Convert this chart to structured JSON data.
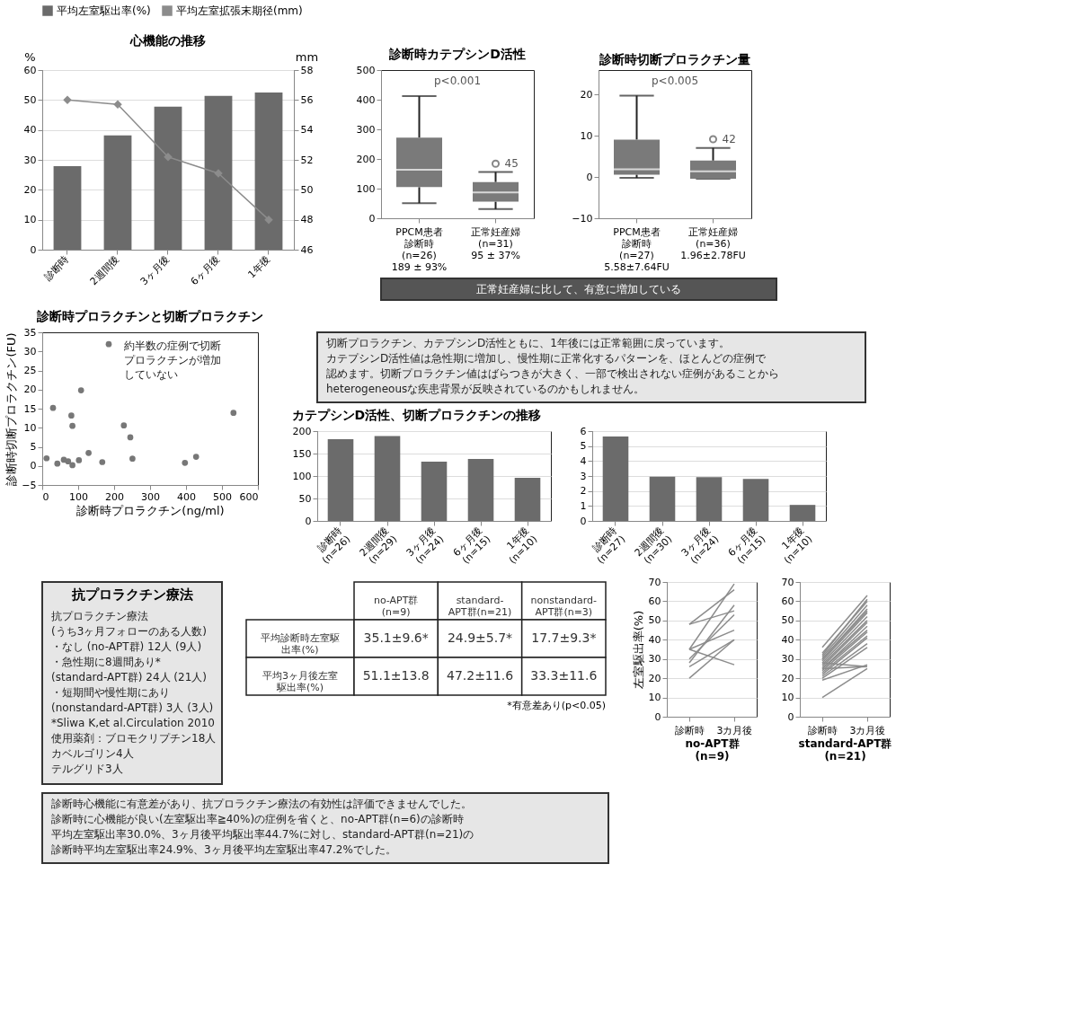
{
  "chart_data": [
    {
      "type": "bar",
      "title": "心機能の推移",
      "ylabel": "%",
      "y2label": "mm",
      "categories": [
        "診断時",
        "2週間後",
        "3ヶ月後",
        "6ヶ月後",
        "1年後"
      ],
      "series": [
        {
          "name": "平均左室駆出率(%)",
          "type": "bar",
          "color": "#6b6b6b",
          "values": [
            27.9,
            38.2,
            47.8,
            51.4,
            52.5
          ]
        },
        {
          "name": "平均左室拡張末期径(mm)",
          "type": "line",
          "axis": "y2",
          "color": "#8c8c8c",
          "marker": "diamond",
          "values": [
            56.0,
            55.7,
            52.2,
            51.1,
            48.0
          ]
        }
      ],
      "ylim": [
        0,
        60
      ],
      "yticks": [
        0,
        10,
        20,
        30,
        40,
        50,
        60
      ],
      "y2lim": [
        46,
        58
      ],
      "y2ticks": [
        46,
        48,
        50,
        52,
        54,
        56,
        58
      ],
      "grid": "y",
      "legend": "top"
    },
    {
      "type": "box",
      "title": "診断時カテプシンD活性",
      "categories": [
        "PPCM患者診断時 (n=26)",
        "正常妊産婦 (n=31)"
      ],
      "value_labels": [
        "189 ± 93%",
        "95 ± 37%"
      ],
      "boxes": [
        {
          "low": 51,
          "q1": 105,
          "median": 164,
          "q3": 272,
          "high": 412
        },
        {
          "low": 31,
          "q1": 56,
          "median": 87,
          "q3": 122,
          "high": 156,
          "outliers": [
            184
          ]
        }
      ],
      "color": "#7a7a7a",
      "ylim": [
        0,
        500
      ],
      "yticks": [
        0,
        100,
        200,
        300,
        400,
        500
      ],
      "annotations": [
        "p<0.001",
        "45"
      ]
    },
    {
      "type": "box",
      "title": "診断時切断プロラクチン量",
      "categories": [
        "PPCM患者診断時 (n=27)",
        "正常妊産婦 (n=36)"
      ],
      "value_labels": [
        "5.58±7.64FU",
        "1.96±2.78FU"
      ],
      "boxes": [
        {
          "low": -0.2,
          "q1": 0.6,
          "median": 1.9,
          "q3": 9.1,
          "high": 19.8
        },
        {
          "low": -0.4,
          "q1": -0.4,
          "median": 1.4,
          "q3": 4.0,
          "high": 7.1,
          "outliers": [
            9.2
          ]
        }
      ],
      "color": "#7a7a7a",
      "ylim": [
        -10,
        26
      ],
      "yticks": [
        -10,
        0,
        10,
        20
      ],
      "annotations": [
        "p<0.005",
        "42"
      ]
    },
    {
      "type": "other",
      "annotations": [
        "正常妊産婦に比して、有意に増加している"
      ]
    },
    {
      "type": "scatter",
      "title": "診断時プロラクチンと切断プロラクチン",
      "xlabel": "診断時プロラクチン(ng/ml)",
      "ylabel": "診断時切断プロラクチン(FU)",
      "color": "#777777",
      "x": [
        30,
        185,
        108,
        81,
        84,
        227,
        245,
        532,
        129,
        428,
        251,
        167,
        397,
        12,
        42,
        72,
        84,
        102,
        60
      ],
      "values": [
        15.2,
        31.9,
        19.8,
        13.2,
        10.5,
        10.6,
        7.5,
        13.9,
        3.4,
        2.4,
        1.9,
        1.0,
        0.8,
        2.0,
        0.6,
        1.2,
        0.2,
        1.5,
        1.6
      ],
      "xlim": [
        0,
        600
      ],
      "xticks": [
        0,
        100,
        200,
        300,
        400,
        500,
        600
      ],
      "ylim": [
        -5,
        35
      ],
      "yticks": [
        -5,
        0,
        5,
        10,
        15,
        20,
        25,
        30,
        35
      ],
      "annotations": [
        "約半数の症例で切断プロラクチンが増加していない"
      ]
    },
    {
      "type": "other",
      "annotations": [
        "切断プロラクチン、カテプシンD活性ともに、1年後には正常範囲に戻っています。",
        "カテプシンD活性値は急性期に増加し、慢性期に正常化するパターンを、ほとんどの症例で",
        "認めます。切断プロラクチン値はばらつきが大きく、一部で検出されない症例があることから",
        "heterogeneousな疾患背景が反映されているのかもしれません。"
      ]
    },
    {
      "type": "bar",
      "title": "カテプシンD活性、切断プロラクチンの推移",
      "categories": [
        "診断時\n(n=26)",
        "2週間後\n(n=29)",
        "3ヶ月後\n(n=24)",
        "6ヶ月後\n(n=15)",
        "1年後\n(n=10)"
      ],
      "values": [
        182,
        189,
        132,
        138,
        96
      ],
      "color": "#6b6b6b",
      "ylim": [
        0,
        200
      ],
      "yticks": [
        0,
        50,
        100,
        150,
        200
      ],
      "grid": "y"
    },
    {
      "type": "bar",
      "categories": [
        "診断時\n(n=27)",
        "2週間後\n(n=30)",
        "3ヶ月後\n(n=24)",
        "6ヶ月後\n(n=15)",
        "1年後\n(n=10)"
      ],
      "values": [
        5.64,
        2.95,
        2.93,
        2.8,
        1.07
      ],
      "color": "#6b6b6b",
      "ylim": [
        0,
        6
      ],
      "yticks": [
        0,
        1,
        2,
        3,
        4,
        5,
        6
      ],
      "grid": "y"
    },
    {
      "type": "other",
      "title": "抗プロラクチン療法",
      "annotations": [
        "抗プロラクチン療法",
        "(うち3ヶ月フォローのある人数)",
        "・なし (no-APT群) 12人 (9人)",
        "・急性期に8週間あり*",
        "(standard-APT群) 24人 (21人)",
        "・短期間や慢性期にあり",
        "(nonstandard-APT群) 3人 (3人)",
        "*Sliwa K,et al.Circulation 2010",
        "使用薬剤：ブロモクリプチン18人",
        "カベルゴリン4人",
        "テルグリド3人"
      ]
    },
    {
      "type": "other",
      "categories": [
        "no-APT群\n(n=9)",
        "standard-\nAPT群(n=21)",
        "nonstandard-\nAPT群(n=3)"
      ],
      "y_categories": [
        "平均診断時左室駆出率(%)",
        "平均3ヶ月後左室駆出率(%)"
      ],
      "cell_labels": [
        [
          "35.1±9.6*",
          "24.9±5.7*",
          "17.7±9.3*"
        ],
        [
          "51.1±13.8",
          "47.2±11.6",
          "33.3±11.6"
        ]
      ],
      "annotations": [
        "*有意差あり(p<0.05)"
      ]
    },
    {
      "type": "line",
      "xlabel": "no-APT群\n(n=9)",
      "ylabel": "左室駆出率(%)",
      "categories": [
        "診断時",
        "3カ月後"
      ],
      "ylim": [
        0,
        70
      ],
      "yticks": [
        0,
        10,
        20,
        30,
        40,
        50,
        60,
        70
      ],
      "grid": "y",
      "series": [
        {
          "color": "#8c8c8c",
          "values": [
            48,
            66
          ]
        },
        {
          "color": "#8c8c8c",
          "values": [
            48,
            55
          ]
        },
        {
          "color": "#8c8c8c",
          "values": [
            35,
            69
          ]
        },
        {
          "color": "#8c8c8c",
          "values": [
            35,
            45
          ]
        },
        {
          "color": "#8c8c8c",
          "values": [
            28,
            58
          ]
        },
        {
          "color": "#8c8c8c",
          "values": [
            26,
            40
          ]
        },
        {
          "color": "#8c8c8c",
          "values": [
            35,
            27
          ]
        },
        {
          "color": "#8c8c8c",
          "values": [
            20,
            40
          ]
        },
        {
          "color": "#8c8c8c",
          "values": [
            30,
            53
          ]
        }
      ]
    },
    {
      "type": "line",
      "xlabel": "standard-APT群\n(n=21)",
      "categories": [
        "診断時",
        "3カ月後"
      ],
      "ylim": [
        0,
        70
      ],
      "yticks": [
        0,
        10,
        20,
        30,
        40,
        50,
        60,
        70
      ],
      "grid": "y",
      "series": [
        {
          "color": "#8c8c8c",
          "values": [
            36,
            63
          ]
        },
        {
          "color": "#8c8c8c",
          "values": [
            32,
            61
          ]
        },
        {
          "color": "#8c8c8c",
          "values": [
            31,
            58
          ]
        },
        {
          "color": "#8c8c8c",
          "values": [
            30,
            56
          ]
        },
        {
          "color": "#8c8c8c",
          "values": [
            30,
            55
          ]
        },
        {
          "color": "#8c8c8c",
          "values": [
            29,
            54
          ]
        },
        {
          "color": "#8c8c8c",
          "values": [
            28,
            52
          ]
        },
        {
          "color": "#8c8c8c",
          "values": [
            27,
            50
          ]
        },
        {
          "color": "#8c8c8c",
          "values": [
            26,
            49
          ]
        },
        {
          "color": "#8c8c8c",
          "values": [
            25,
            47
          ]
        },
        {
          "color": "#8c8c8c",
          "values": [
            25,
            45
          ]
        },
        {
          "color": "#8c8c8c",
          "values": [
            24,
            44
          ]
        },
        {
          "color": "#8c8c8c",
          "values": [
            23,
            42
          ]
        },
        {
          "color": "#8c8c8c",
          "values": [
            22,
            41
          ]
        },
        {
          "color": "#8c8c8c",
          "values": [
            21,
            38
          ]
        },
        {
          "color": "#8c8c8c",
          "values": [
            20,
            36
          ]
        },
        {
          "color": "#8c8c8c",
          "values": [
            19,
            27
          ]
        },
        {
          "color": "#8c8c8c",
          "values": [
            25,
            26
          ]
        },
        {
          "color": "#8c8c8c",
          "values": [
            28,
            26
          ]
        },
        {
          "color": "#8c8c8c",
          "values": [
            10,
            25
          ]
        },
        {
          "color": "#8c8c8c",
          "values": [
            33,
            60
          ]
        }
      ]
    },
    {
      "type": "other",
      "annotations": [
        "診断時心機能に有意差があり、抗プロラクチン療法の有効性は評価できませんでした。",
        "診断時に心機能が良い(左室駆出率≧40%)の症例を省くと、no-APT群(n=6)の診断時",
        "平均左室駆出率30.0%、3ヶ月後平均駆出率44.7%に対し、standard-APT群(n=21)の",
        "診断時平均左室駆出率24.9%、3ヶ月後平均左室駆出率47.2%でした。"
      ]
    }
  ]
}
